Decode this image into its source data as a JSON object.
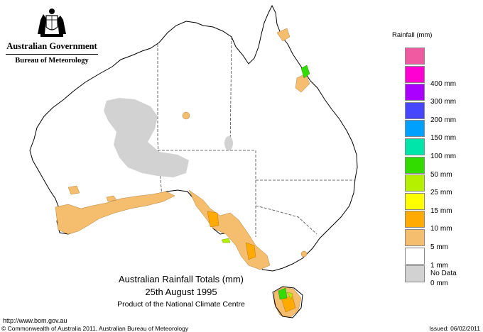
{
  "header": {
    "org_primary": "Australian Government",
    "org_secondary": "Bureau of Meteorology"
  },
  "map": {
    "title": "Australian Rainfall Totals (mm)",
    "date": "25th August 1995",
    "product": "Product of the National Climate Centre"
  },
  "legend": {
    "title": "Rainfall (mm)",
    "items": [
      {
        "label": "",
        "color": "#f05aa0"
      },
      {
        "label": "400 mm",
        "color": "#ff00d2"
      },
      {
        "label": "300 mm",
        "color": "#aa00ff"
      },
      {
        "label": "200 mm",
        "color": "#4646ff"
      },
      {
        "label": "150 mm",
        "color": "#00a0ff"
      },
      {
        "label": "100 mm",
        "color": "#00e6aa"
      },
      {
        "label": "50 mm",
        "color": "#32dc00"
      },
      {
        "label": "25 mm",
        "color": "#b4f000"
      },
      {
        "label": "15 mm",
        "color": "#ffff00"
      },
      {
        "label": "10 mm",
        "color": "#ffaa00"
      },
      {
        "label": "5 mm",
        "color": "#f5be6e"
      },
      {
        "label": "1 mm",
        "color": "#ffffff"
      },
      {
        "label": "0 mm",
        "color": "#d2d2d2"
      }
    ],
    "no_data_label": "No Data"
  },
  "footer": {
    "url": "http://www.bom.gov.au",
    "copyright": "© Commonwealth of Australia 2011, Australian Bureau of Meteorology",
    "issued": "Issued: 06/02/2011"
  }
}
